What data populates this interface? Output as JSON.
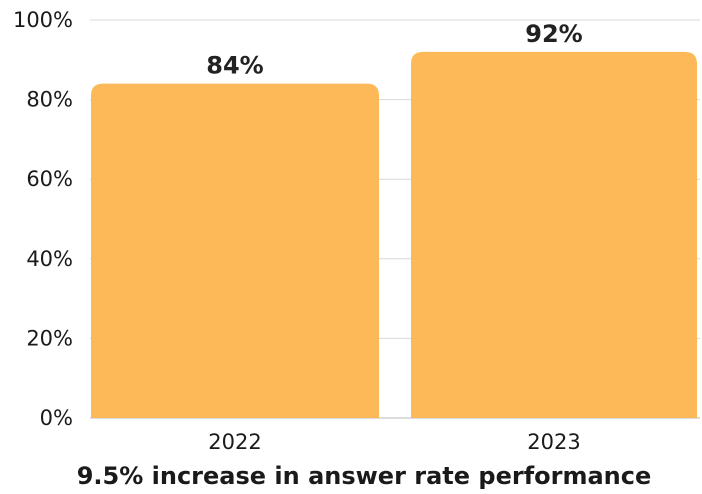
{
  "chart_data": {
    "type": "bar",
    "categories": [
      "2022",
      "2023"
    ],
    "values": [
      84,
      92
    ],
    "value_labels": [
      "84%",
      "92%"
    ],
    "ylim": [
      0,
      100
    ],
    "yticks": [
      0,
      20,
      40,
      60,
      80,
      100
    ],
    "ytick_labels": [
      "0%",
      "20%",
      "40%",
      "60%",
      "80%",
      "100%"
    ],
    "caption": "9.5% increase in answer rate performance",
    "grid": true,
    "legend": "none",
    "colors": {
      "bar": "#FDB957",
      "grid": "#d9d9d9",
      "text": "#1a1a1a"
    }
  }
}
